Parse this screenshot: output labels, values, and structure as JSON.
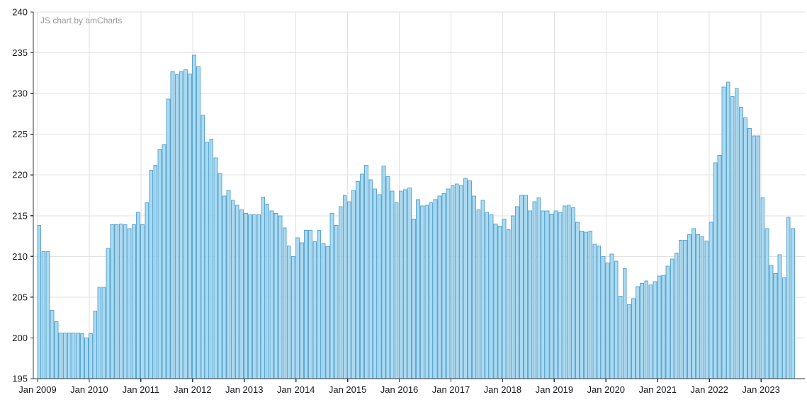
{
  "watermark": {
    "text": "JS chart by amCharts"
  },
  "chart_data": {
    "type": "bar",
    "title": "",
    "description": "Monthly column chart, single series, Jan 2009 - Aug 2023",
    "x_start_label": "Jan 2009",
    "x_end_label": "Aug 2023",
    "frequency": "monthly",
    "x_tick_labels": [
      "Jan 2009",
      "Jan 2010",
      "Jan 2011",
      "Jan 2012",
      "Jan 2013",
      "Jan 2014",
      "Jan 2015",
      "Jan 2016",
      "Jan 2017",
      "Jan 2018",
      "Jan 2019",
      "Jan 2020",
      "Jan 2021",
      "Jan 2022",
      "Jan 2023"
    ],
    "y_ticks": [
      240,
      235,
      230,
      225,
      220,
      215,
      210,
      205,
      200,
      195
    ],
    "ylim": [
      195,
      240
    ],
    "grid": true,
    "legend": "none",
    "series": [
      {
        "name": "value",
        "values": [
          213.8,
          210.6,
          210.6,
          203.4,
          202.0,
          200.6,
          200.6,
          200.6,
          200.6,
          200.6,
          200.5,
          200.0,
          200.5,
          203.3,
          206.2,
          206.2,
          211.0,
          213.9,
          213.9,
          214.0,
          213.9,
          213.4,
          213.9,
          215.4,
          213.9,
          216.6,
          220.6,
          221.2,
          223.1,
          223.7,
          229.3,
          232.7,
          232.3,
          232.7,
          232.9,
          232.4,
          234.7,
          233.3,
          227.3,
          224.0,
          224.4,
          222.1,
          220.2,
          217.4,
          218.1,
          216.9,
          216.3,
          215.7,
          215.3,
          215.1,
          215.1,
          215.1,
          217.3,
          216.4,
          215.6,
          215.3,
          215.0,
          213.5,
          211.3,
          210.0,
          212.3,
          211.7,
          213.2,
          213.2,
          211.8,
          213.2,
          211.6,
          211.2,
          215.3,
          213.8,
          216.1,
          217.5,
          216.7,
          218.1,
          219.2,
          220.1,
          221.2,
          219.4,
          218.3,
          217.6,
          221.1,
          219.8,
          218.0,
          216.6,
          218.0,
          218.2,
          218.4,
          214.6,
          217.0,
          216.2,
          216.3,
          216.6,
          217.0,
          217.4,
          217.7,
          218.3,
          218.7,
          218.9,
          218.7,
          219.6,
          219.3,
          217.4,
          215.7,
          216.9,
          215.4,
          215.1,
          214.0,
          213.7,
          214.6,
          213.3,
          215.0,
          216.1,
          217.5,
          217.5,
          215.6,
          216.7,
          217.2,
          215.6,
          215.6,
          215.2,
          215.6,
          215.4,
          216.2,
          216.3,
          216.0,
          214.2,
          213.1,
          213.0,
          213.1,
          211.5,
          211.3,
          210.0,
          209.2,
          210.3,
          209.4,
          205.1,
          208.5,
          204.1,
          204.8,
          206.3,
          206.7,
          207.0,
          206.5,
          206.9,
          207.6,
          207.7,
          208.8,
          209.7,
          210.4,
          212.0,
          212.0,
          212.7,
          213.4,
          212.7,
          212.4,
          211.9,
          214.2,
          221.5,
          222.4,
          230.8,
          231.4,
          229.6,
          230.6,
          228.3,
          227.0,
          225.7,
          224.8,
          224.8,
          217.2,
          213.4,
          208.9,
          207.9,
          210.2,
          207.4,
          214.8,
          213.4
        ]
      }
    ],
    "colors": {
      "bar_fill": "#ABDAF1",
      "bar_stroke": "#5FA8D0",
      "grid": "#E2E2E2",
      "axis": "#2F3A44",
      "axis_label": "#16191D",
      "watermark": "#9A9A9A",
      "background": "#FFFFFF"
    }
  }
}
